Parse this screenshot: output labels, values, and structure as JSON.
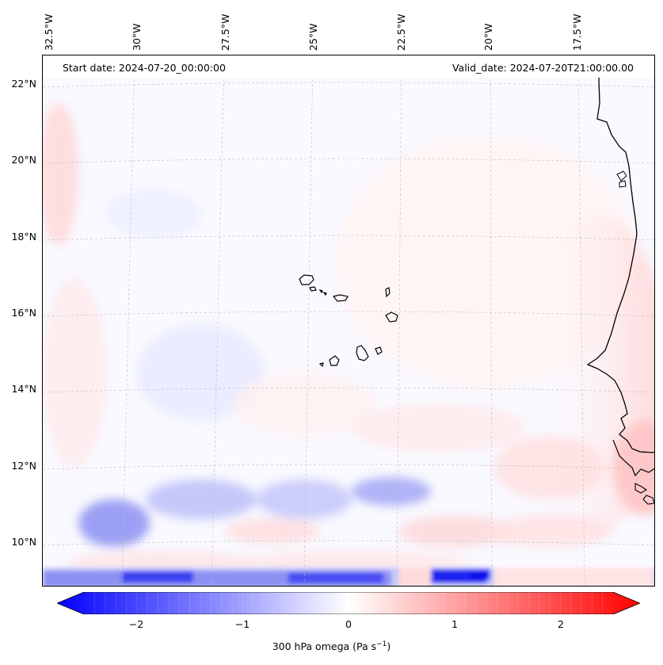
{
  "map": {
    "start_date": "Start date: 2024-07-20_00:00:00",
    "valid_date": "Valid_date: 2024-07-20T21:00:00.00",
    "lon_labels": [
      "32.5°W",
      "30°W",
      "27.5°W",
      "25°W",
      "22.5°W",
      "20°W",
      "17.5°W"
    ],
    "lat_labels": [
      "22°N",
      "20°N",
      "18°N",
      "16°N",
      "14°N",
      "12°N",
      "10°N"
    ],
    "colorbar": {
      "ticks": [
        "−2",
        "−1",
        "0",
        "1",
        "2"
      ],
      "label": "300 hPa omega (Pa s",
      "label_sup": "−1",
      "label_end": ")",
      "min": -2.6,
      "max": 2.6,
      "colors": {
        "neg": "#0000ff",
        "mid": "#ffffff",
        "pos": "#ff0000"
      }
    }
  }
}
